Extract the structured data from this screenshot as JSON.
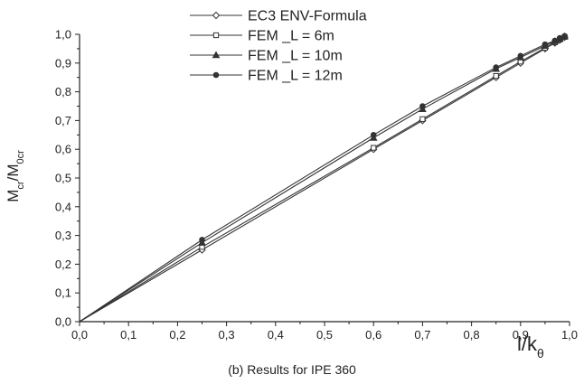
{
  "chart_data": {
    "type": "line",
    "caption": "(b) Results for IPE 360",
    "ylabel": {
      "main": "M",
      "sub1": "cr",
      "slash": "/M",
      "sub2": "0cr"
    },
    "xlabel": {
      "main": "l/k",
      "sub": "θ"
    },
    "xlim": [
      0.0,
      1.0
    ],
    "ylim": [
      0.0,
      1.0
    ],
    "xticks": [
      0.0,
      0.1,
      0.2,
      0.3,
      0.4,
      0.5,
      0.6,
      0.7,
      0.8,
      0.9,
      1.0
    ],
    "yticks": [
      0.0,
      0.1,
      0.2,
      0.3,
      0.4,
      0.5,
      0.6,
      0.7,
      0.8,
      0.9,
      1.0
    ],
    "xtick_labels": [
      "0,0",
      "0,1",
      "0,2",
      "0,3",
      "0,4",
      "0,5",
      "0,6",
      "0,7",
      "0,8",
      "0,9",
      "1,0"
    ],
    "ytick_labels": [
      "0,0",
      "0,1",
      "0,2",
      "0,3",
      "0,4",
      "0,5",
      "0,6",
      "0,7",
      "0,8",
      "0,9",
      "1,0"
    ],
    "legend_position": "top-left",
    "x": [
      0.0,
      0.25,
      0.6,
      0.7,
      0.85,
      0.9,
      0.95,
      0.97,
      0.98,
      0.99
    ],
    "series": [
      {
        "name": "EC3 ENV-Formula",
        "marker": "diamond",
        "values": [
          0.0,
          0.25,
          0.6,
          0.7,
          0.85,
          0.9,
          0.95,
          0.97,
          0.98,
          0.99
        ]
      },
      {
        "name": "FEM _L = 6m",
        "marker": "square",
        "values": [
          0.0,
          0.26,
          0.605,
          0.705,
          0.855,
          0.905,
          0.953,
          0.972,
          0.982,
          0.991
        ]
      },
      {
        "name": "FEM _L = 10m",
        "marker": "triangle",
        "values": [
          0.0,
          0.275,
          0.64,
          0.74,
          0.88,
          0.92,
          0.96,
          0.976,
          0.985,
          0.993
        ]
      },
      {
        "name": "FEM _L = 12m",
        "marker": "circle",
        "values": [
          0.0,
          0.285,
          0.65,
          0.75,
          0.885,
          0.925,
          0.965,
          0.978,
          0.987,
          0.994
        ]
      }
    ]
  }
}
